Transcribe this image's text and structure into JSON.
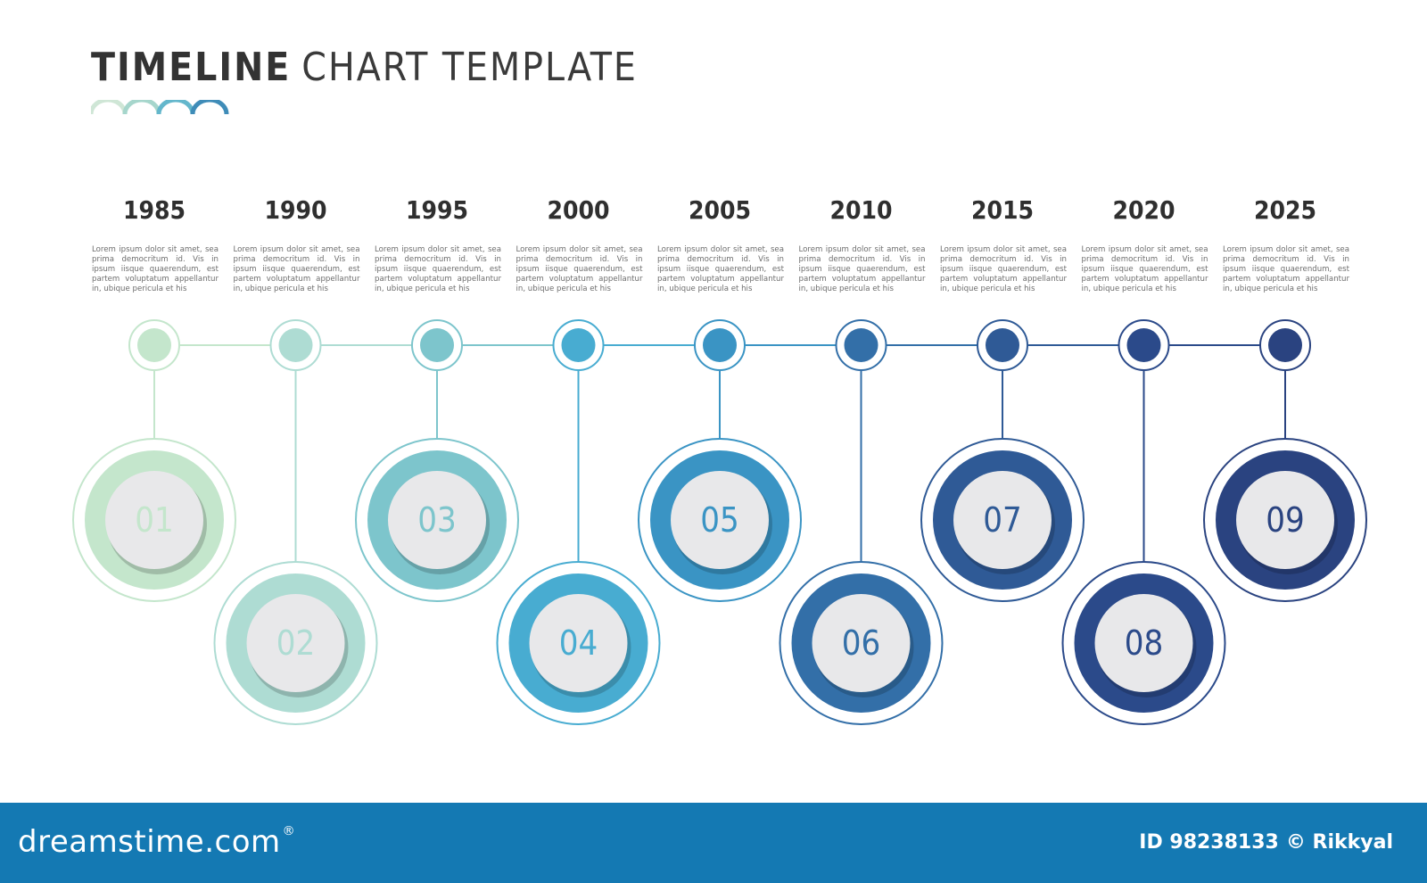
{
  "header": {
    "title_bold": "TIMELINE",
    "title_light": "CHART TEMPLATE",
    "wave_colors": [
      "#cfe6d6",
      "#a6d6cc",
      "#64b7cc",
      "#3f8cb8"
    ]
  },
  "colors": {
    "steps": [
      "#c4e6cc",
      "#aedcd3",
      "#7dc5cc",
      "#48acd1",
      "#3a94c4",
      "#336fa8",
      "#2f5a96",
      "#2b4a8a",
      "#2a4380"
    ],
    "knob": "#e8e8ea",
    "footer": "#1479b3"
  },
  "timeline": {
    "description_text": "Lorem ipsum dolor sit amet, sea prima democritum id. Vis in ipsum iisque quaerendum, est partem voluptatum appellantur in, ubique pericula et his",
    "items": [
      {
        "year": "1985",
        "number": "01",
        "level": "upper"
      },
      {
        "year": "1990",
        "number": "02",
        "level": "lower"
      },
      {
        "year": "1995",
        "number": "03",
        "level": "upper"
      },
      {
        "year": "2000",
        "number": "04",
        "level": "lower"
      },
      {
        "year": "2005",
        "number": "05",
        "level": "upper"
      },
      {
        "year": "2010",
        "number": "06",
        "level": "lower"
      },
      {
        "year": "2015",
        "number": "07",
        "level": "upper"
      },
      {
        "year": "2020",
        "number": "08",
        "level": "lower"
      },
      {
        "year": "2025",
        "number": "09",
        "level": "upper"
      }
    ]
  },
  "footer": {
    "logo_text": "dreamstime.com",
    "logo_reg": "®",
    "credit_id": "ID 98238133",
    "credit_author": "© Rikkyal"
  }
}
